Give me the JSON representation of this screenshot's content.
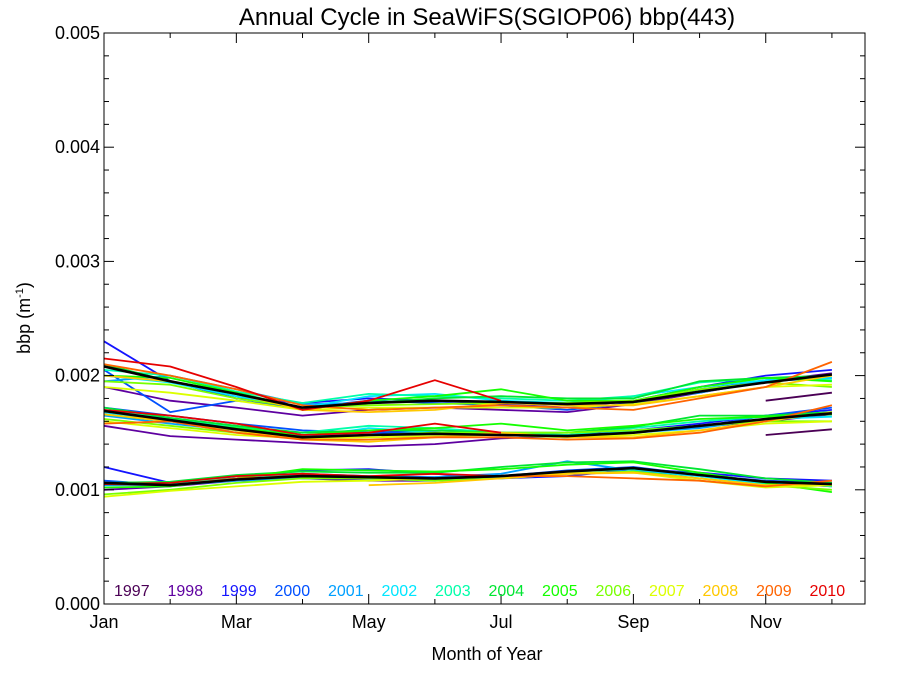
{
  "chart_data": {
    "type": "line",
    "title": "Annual Cycle in SeaWiFS(SGIOP06) bbp(443)",
    "xlabel": "Month of Year",
    "ylabel_main": "bbp (m",
    "ylabel_sup": "-1",
    "ylabel_close": ")",
    "xlim": [
      1,
      12.5
    ],
    "ylim": [
      0,
      0.005
    ],
    "x_ticks": [
      {
        "value": 1,
        "label": "Jan"
      },
      {
        "value": 3,
        "label": "Mar"
      },
      {
        "value": 5,
        "label": "May"
      },
      {
        "value": 7,
        "label": "Jul"
      },
      {
        "value": 9,
        "label": "Sep"
      },
      {
        "value": 11,
        "label": "Nov"
      }
    ],
    "y_ticks": [
      {
        "value": 0,
        "label": "0.000"
      },
      {
        "value": 0.001,
        "label": "0.001"
      },
      {
        "value": 0.002,
        "label": "0.002"
      },
      {
        "value": 0.003,
        "label": "0.003"
      },
      {
        "value": 0.004,
        "label": "0.004"
      },
      {
        "value": 0.005,
        "label": "0.005"
      }
    ],
    "legend_placement": "bottom",
    "x": [
      1,
      2,
      3,
      4,
      5,
      6,
      7,
      8,
      9,
      10,
      11,
      12
    ],
    "series": [
      {
        "name": "1997",
        "color": "#4b0055",
        "values": {
          "high": [
            null,
            null,
            null,
            null,
            null,
            null,
            null,
            null,
            null,
            null,
            0.00178,
            0.00185
          ],
          "median": [
            null,
            null,
            null,
            null,
            null,
            null,
            null,
            null,
            null,
            null,
            0.00148,
            0.00153
          ],
          "low": [
            null,
            null,
            null,
            null,
            null,
            null,
            null,
            null,
            null,
            null,
            null,
            null
          ]
        }
      },
      {
        "name": "1998",
        "color": "#5e00a0",
        "values": {
          "high": [
            0.0019,
            0.00178,
            0.00172,
            0.00165,
            0.0017,
            0.00172,
            0.0017,
            0.00168,
            0.00175,
            0.00185,
            0.00195,
            0.00202
          ],
          "median": [
            0.00156,
            0.00147,
            0.00144,
            0.00141,
            0.00138,
            0.0014,
            0.00145,
            0.00147,
            0.0015,
            0.00155,
            0.0016,
            0.00166
          ],
          "low": [
            0.001,
            0.00103,
            0.00108,
            0.0011,
            0.00108,
            0.00108,
            0.00112,
            0.00116,
            0.00118,
            0.00113,
            0.00106,
            0.00103
          ]
        }
      },
      {
        "name": "1999",
        "color": "#1414ff",
        "values": {
          "high": [
            0.0023,
            0.00195,
            0.0018,
            0.00176,
            0.0018,
            0.00178,
            0.00175,
            0.00172,
            0.00178,
            0.0019,
            0.002,
            0.00205
          ],
          "median": [
            0.00168,
            0.0016,
            0.00155,
            0.00148,
            0.0015,
            0.00152,
            0.0015,
            0.00148,
            0.00152,
            0.00158,
            0.00165,
            0.0017
          ],
          "low": [
            0.0012,
            0.00106,
            0.0011,
            0.00117,
            0.00118,
            0.00114,
            0.0011,
            0.00112,
            0.00118,
            0.00115,
            0.0011,
            0.00108
          ]
        }
      },
      {
        "name": "2000",
        "color": "#0050ff",
        "values": {
          "high": [
            0.00205,
            0.00168,
            0.00178,
            0.00172,
            0.00178,
            0.00176,
            0.00174,
            0.0017,
            0.00176,
            0.00188,
            0.00195,
            0.00198
          ],
          "median": [
            0.00172,
            0.00165,
            0.00158,
            0.00152,
            0.0015,
            0.0015,
            0.00148,
            0.00146,
            0.0015,
            0.00155,
            0.00165,
            0.00172
          ],
          "low": [
            0.00108,
            0.00104,
            0.00112,
            0.00114,
            0.00112,
            0.00111,
            0.00112,
            0.00117,
            0.0012,
            0.00113,
            0.00108,
            0.00106
          ]
        }
      },
      {
        "name": "2001",
        "color": "#00a0ff",
        "values": {
          "high": [
            0.00195,
            0.002,
            0.00188,
            0.00175,
            0.00176,
            0.00178,
            0.00176,
            0.00175,
            0.00178,
            0.00185,
            0.00196,
            0.002
          ],
          "median": [
            0.00165,
            0.00158,
            0.00152,
            0.00147,
            0.00148,
            0.0015,
            0.00148,
            0.00148,
            0.0015,
            0.00154,
            0.00162,
            0.00168
          ],
          "low": [
            0.00104,
            0.00104,
            0.00108,
            0.0011,
            0.0011,
            0.00111,
            0.00114,
            0.00125,
            0.00117,
            0.00112,
            0.00106,
            0.00104
          ]
        }
      },
      {
        "name": "2002",
        "color": "#00e6ff",
        "values": {
          "high": [
            0.002,
            0.00194,
            0.00182,
            0.00172,
            0.00182,
            0.00184,
            0.00178,
            0.00176,
            0.00182,
            0.0019,
            0.00196,
            0.00198
          ],
          "median": [
            0.00168,
            0.0016,
            0.00152,
            0.00146,
            0.00154,
            0.0015,
            0.00148,
            0.00146,
            0.00152,
            0.00156,
            0.00162,
            0.00164
          ],
          "low": [
            0.00105,
            0.00105,
            0.0011,
            0.00112,
            0.0011,
            0.00108,
            0.0011,
            0.00116,
            0.00118,
            0.00112,
            0.00105,
            0.00104
          ]
        }
      },
      {
        "name": "2003",
        "color": "#00ffaa",
        "values": {
          "high": [
            0.00205,
            0.002,
            0.00186,
            0.00176,
            0.00184,
            0.00182,
            0.0018,
            0.00178,
            0.00182,
            0.00194,
            0.00198,
            0.00196
          ],
          "median": [
            0.0017,
            0.00162,
            0.00155,
            0.0015,
            0.00156,
            0.00154,
            0.0015,
            0.00148,
            0.00154,
            0.0016,
            0.00164,
            0.00168
          ],
          "low": [
            0.00106,
            0.00106,
            0.0011,
            0.00113,
            0.00112,
            0.0011,
            0.00112,
            0.00116,
            0.00118,
            0.00114,
            0.00107,
            0.00103
          ]
        }
      },
      {
        "name": "2004",
        "color": "#00e632",
        "values": {
          "high": [
            0.0021,
            0.00195,
            0.00185,
            0.00172,
            0.00176,
            0.0018,
            0.00182,
            0.0018,
            0.0018,
            0.00195,
            0.00198,
            0.002
          ],
          "median": [
            0.00172,
            0.00163,
            0.00156,
            0.0015,
            0.00152,
            0.00152,
            0.0015,
            0.0015,
            0.00155,
            0.00165,
            0.00165,
            0.00168
          ],
          "low": [
            0.00106,
            0.00107,
            0.00113,
            0.00116,
            0.00115,
            0.00115,
            0.0012,
            0.00124,
            0.00125,
            0.00118,
            0.0011,
            0.00106
          ]
        }
      },
      {
        "name": "2005",
        "color": "#14ff00",
        "values": {
          "high": [
            0.002,
            0.00198,
            0.00185,
            0.0017,
            0.00178,
            0.00182,
            0.00188,
            0.00178,
            0.00178,
            0.0019,
            0.00198,
            0.00195
          ],
          "median": [
            0.00166,
            0.0016,
            0.00154,
            0.00148,
            0.00152,
            0.00154,
            0.00158,
            0.00152,
            0.00156,
            0.00162,
            0.00164,
            0.00166
          ],
          "low": [
            0.00102,
            0.00103,
            0.0011,
            0.00118,
            0.00117,
            0.00116,
            0.00118,
            0.00122,
            0.00124,
            0.00115,
            0.00106,
            0.00098
          ]
        }
      },
      {
        "name": "2006",
        "color": "#78ff00",
        "values": {
          "high": [
            0.00195,
            0.00192,
            0.0018,
            0.00172,
            0.00174,
            0.00175,
            0.00176,
            0.00176,
            0.00178,
            0.00188,
            0.00194,
            0.0019
          ],
          "median": [
            0.00162,
            0.00156,
            0.0015,
            0.00146,
            0.00148,
            0.0015,
            0.0015,
            0.0015,
            0.00152,
            0.00156,
            0.0016,
            0.0016
          ],
          "low": [
            0.00096,
            0.001,
            0.00106,
            0.0011,
            0.0011,
            0.00108,
            0.0011,
            0.00114,
            0.00116,
            0.0011,
            0.00104,
            0.001
          ]
        }
      },
      {
        "name": "2007",
        "color": "#dcff00",
        "values": {
          "high": [
            0.0019,
            0.00185,
            0.00178,
            0.0017,
            0.00172,
            0.00172,
            0.00172,
            0.00172,
            0.00175,
            0.00182,
            0.0019,
            0.00192
          ],
          "median": [
            0.0016,
            0.00154,
            0.00148,
            0.00145,
            0.00146,
            0.00147,
            0.00148,
            0.00146,
            0.00148,
            0.00152,
            0.00158,
            0.0016
          ],
          "low": [
            0.00094,
            0.00099,
            0.00103,
            0.00107,
            0.00108,
            0.0011,
            0.00112,
            0.00115,
            0.00115,
            0.00108,
            0.00102,
            0.00104
          ]
        }
      },
      {
        "name": "2008",
        "color": "#ffc800",
        "values": {
          "high": [
            0.002,
            0.00195,
            0.00184,
            0.0017,
            0.00168,
            0.0017,
            0.00176,
            0.00174,
            0.00174,
            0.00182,
            0.0019,
            0.002
          ],
          "median": [
            0.00166,
            0.0016,
            0.00152,
            0.00144,
            0.00142,
            0.00146,
            0.0015,
            0.00146,
            0.00146,
            0.00152,
            0.0016,
            0.00168
          ],
          "low": [
            null,
            null,
            null,
            null,
            0.00104,
            0.00106,
            0.0011,
            0.00114,
            0.00115,
            0.0011,
            0.00104,
            0.00105
          ]
        }
      },
      {
        "name": "2009",
        "color": "#ff6400",
        "values": {
          "high": [
            0.0021,
            0.002,
            0.00188,
            0.00174,
            0.0017,
            0.00172,
            0.00174,
            0.00172,
            0.0017,
            0.0018,
            0.0019,
            0.00212
          ],
          "median": [
            0.00158,
            0.0016,
            0.0015,
            0.00144,
            0.00144,
            0.00146,
            0.00146,
            0.00144,
            0.00145,
            0.0015,
            0.0016,
            0.00174
          ],
          "low": [
            0.00105,
            0.00104,
            0.0011,
            0.00112,
            0.00111,
            0.0011,
            0.00112,
            0.00112,
            0.0011,
            0.00108,
            0.00103,
            0.00108
          ]
        }
      },
      {
        "name": "2010",
        "color": "#e60000",
        "values": {
          "high": [
            0.00215,
            0.00208,
            0.0019,
            0.0017,
            0.00178,
            0.00196,
            0.00178,
            null,
            null,
            null,
            null,
            null
          ],
          "median": [
            0.0017,
            0.00165,
            0.00158,
            0.00148,
            0.0015,
            0.00158,
            0.0015,
            null,
            null,
            null,
            null,
            null
          ],
          "low": [
            0.00105,
            0.00106,
            0.00112,
            0.00114,
            0.00112,
            0.00114,
            0.00112,
            null,
            null,
            null,
            null,
            null
          ]
        }
      }
    ],
    "mean": {
      "color": "#000000",
      "high": [
        0.00208,
        0.00195,
        0.00184,
        0.00172,
        0.00176,
        0.00178,
        0.00177,
        0.00175,
        0.00177,
        0.00186,
        0.00194,
        0.00201
      ],
      "median": [
        0.00169,
        0.00161,
        0.00153,
        0.00146,
        0.00148,
        0.00149,
        0.00148,
        0.00147,
        0.0015,
        0.00156,
        0.00162,
        0.00167
      ],
      "low": [
        0.00106,
        0.00104,
        0.00109,
        0.00112,
        0.00111,
        0.0011,
        0.00112,
        0.00116,
        0.00119,
        0.00113,
        0.00107,
        0.00105
      ]
    }
  }
}
